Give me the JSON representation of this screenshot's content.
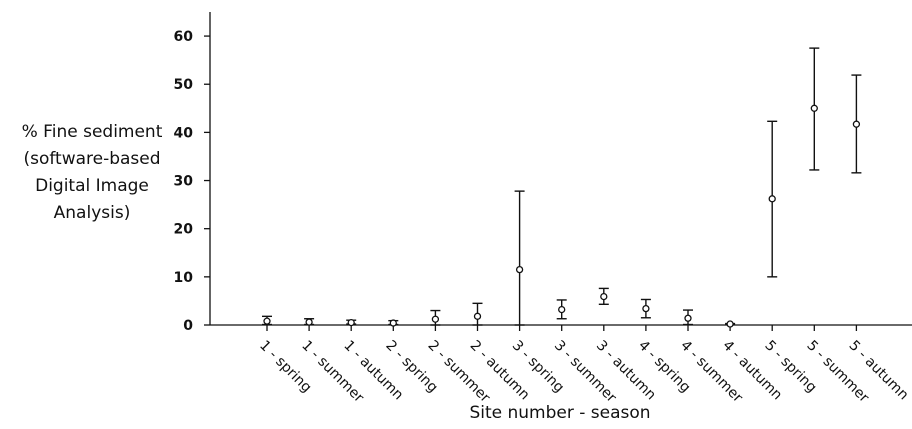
{
  "chart_data": {
    "type": "scatter",
    "title": "",
    "ylabel_lines": [
      "% Fine sediment",
      "(software-based",
      "Digital Image",
      "Analysis)"
    ],
    "xlabel": "Site number - season",
    "ylim": [
      0,
      65
    ],
    "yticks": [
      0,
      10,
      20,
      30,
      40,
      50,
      60
    ],
    "categories": [
      "1 - spring",
      "1 - summer",
      "1 - autumn",
      "2 - spring",
      "2 - summer",
      "2 - autumn",
      "3 - spring",
      "3 - summer",
      "3 - autumn",
      "4 - spring",
      "4 - summer",
      "4 - autumn",
      "5 - spring",
      "5 - summer",
      "5 - autumn"
    ],
    "values": [
      0.8,
      0.6,
      0.5,
      0.4,
      1.2,
      1.8,
      11.5,
      3.2,
      5.9,
      3.4,
      1.4,
      0.2,
      26.2,
      45.0,
      41.7
    ],
    "error_low": [
      0.1,
      0.1,
      0.2,
      0.1,
      0.0,
      0.0,
      0.0,
      1.3,
      4.3,
      1.5,
      0.1,
      0.1,
      10.0,
      32.2,
      31.6
    ],
    "error_high": [
      1.8,
      1.3,
      1.0,
      0.9,
      3.0,
      4.5,
      27.8,
      5.2,
      7.6,
      5.3,
      3.1,
      0.3,
      42.3,
      57.5,
      51.9
    ],
    "grid": false,
    "legend": false
  }
}
